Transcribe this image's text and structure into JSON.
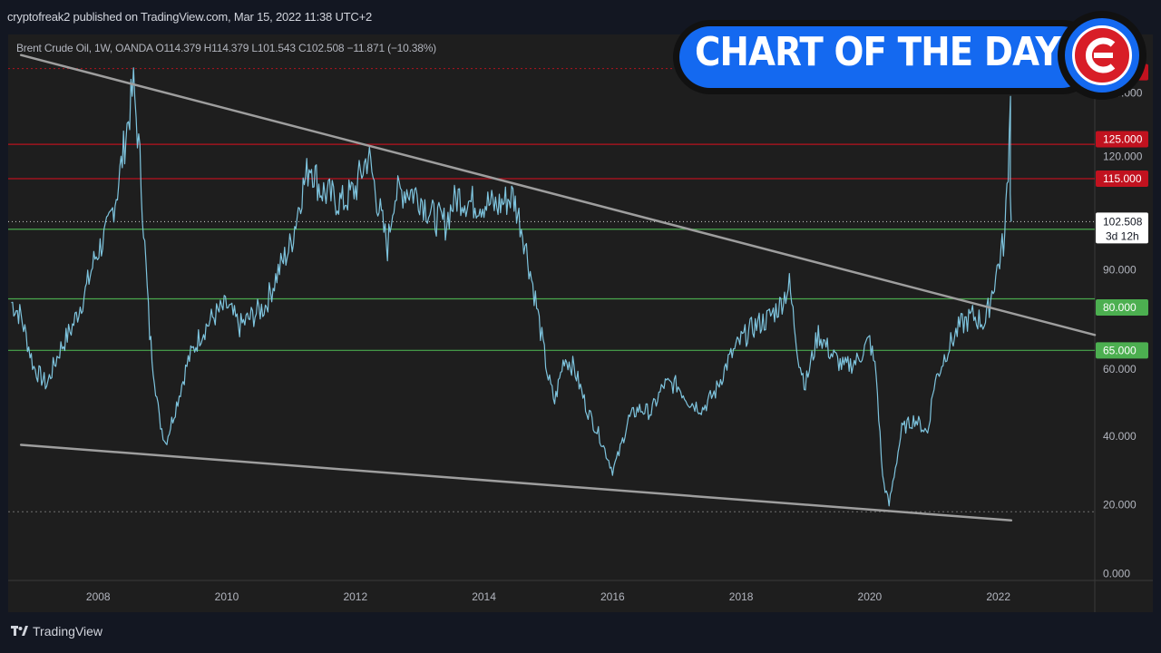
{
  "header": {
    "published_by": "cryptofreak2 published on TradingView.com, Mar 15, 2022 11:38 UTC+2",
    "legend": "Brent Crude Oil, 1W, OANDA  O114.379  H114.379  L101.543  C102.508  −11.871 (−10.38%)"
  },
  "footer": {
    "brand": "TradingView"
  },
  "badge": {
    "text": "CHART OF THE DAY",
    "logo_icon": "c-logo-icon"
  },
  "colors": {
    "background": "#1e1e1e",
    "price_line": "#7ec4de",
    "red_level": "#c1121f",
    "green_level": "#4caf50",
    "trend_line": "#9e9e9e",
    "accent_blue": "#1469f0"
  },
  "chart_data": {
    "type": "line",
    "title": "Brent Crude Oil, 1W, OANDA",
    "xlim": [
      2006.6,
      2023.5
    ],
    "ylim": [
      -2,
      157
    ],
    "x_ticks": [
      2008,
      2010,
      2012,
      2014,
      2016,
      2018,
      2020,
      2022
    ],
    "y_ticks": [
      0,
      20,
      40,
      60,
      80,
      90,
      100,
      102.508,
      115,
      120,
      125,
      140,
      147.065
    ],
    "axis_labels": [
      {
        "value": 0,
        "label": "0.000",
        "style": "plain"
      },
      {
        "value": 20,
        "label": "20.000",
        "style": "plain"
      },
      {
        "value": 40,
        "label": "40.000",
        "style": "plain"
      },
      {
        "value": 60,
        "label": "60.000",
        "style": "plain"
      },
      {
        "value": 65,
        "label": "65.000",
        "style": "green"
      },
      {
        "value": 80,
        "label": "80.000",
        "style": "green"
      },
      {
        "value": 90,
        "label": "90.000",
        "style": "plain"
      },
      {
        "value": 100.284,
        "label": "100.284",
        "style": "green"
      },
      {
        "value": 102.508,
        "label": "102.508",
        "sublabel": "3d 12h",
        "style": "last"
      },
      {
        "value": 115,
        "label": "115.000",
        "style": "red"
      },
      {
        "value": 120,
        "label": "120.000",
        "style": "plain"
      },
      {
        "value": 125,
        "label": "125.000",
        "style": "red"
      },
      {
        "value": 140,
        "label": "140.000",
        "style": "plain"
      },
      {
        "value": 147.065,
        "label": "147.065",
        "style": "red"
      }
    ],
    "horizontal_levels": [
      {
        "value": 147.065,
        "color": "red",
        "dashed": true
      },
      {
        "value": 125,
        "color": "red",
        "dashed": false
      },
      {
        "value": 115,
        "color": "red",
        "dashed": false
      },
      {
        "value": 100.284,
        "color": "green",
        "dashed": false
      },
      {
        "value": 80,
        "color": "green",
        "dashed": false
      },
      {
        "value": 65,
        "color": "green",
        "dashed": false
      },
      {
        "value": 18,
        "color": "gray",
        "dashed": true
      }
    ],
    "last_price": 102.508,
    "trend_lines": [
      {
        "from": [
          2006.8,
          151.0
        ],
        "to": [
          2023.5,
          69.5
        ]
      },
      {
        "from": [
          2006.8,
          37.5
        ],
        "to": [
          2022.2,
          15.5
        ]
      }
    ],
    "series": [
      {
        "x": [
          2006.65,
          2006.8,
          2007.0,
          2007.2,
          2007.4,
          2007.6,
          2007.8,
          2007.95,
          2008.15,
          2008.3,
          2008.45,
          2008.55,
          2008.65,
          2008.8,
          2008.95,
          2009.05,
          2009.2,
          2009.4,
          2009.6,
          2009.8,
          2010.0,
          2010.2,
          2010.4,
          2010.6,
          2010.8,
          2011.0,
          2011.15,
          2011.3,
          2011.45,
          2011.6,
          2011.8,
          2012.0,
          2012.2,
          2012.35,
          2012.5,
          2012.6,
          2012.8,
          2013.0,
          2013.2,
          2013.4,
          2013.5,
          2013.6,
          2013.8,
          2014.0,
          2014.2,
          2014.45,
          2014.6,
          2014.8,
          2015.0,
          2015.1,
          2015.25,
          2015.4,
          2015.6,
          2015.8,
          2016.0,
          2016.1,
          2016.25,
          2016.4,
          2016.6,
          2016.8,
          2017.0,
          2017.2,
          2017.4,
          2017.6,
          2017.8,
          2018.0,
          2018.2,
          2018.4,
          2018.6,
          2018.75,
          2018.9,
          2019.0,
          2019.2,
          2019.4,
          2019.6,
          2019.8,
          2020.0,
          2020.1,
          2020.2,
          2020.3,
          2020.5,
          2020.7,
          2020.9,
          2021.0,
          2021.2,
          2021.4,
          2021.6,
          2021.8,
          2021.9,
          2022.0,
          2022.1,
          2022.17,
          2022.2
        ],
        "values": [
          79,
          75,
          60,
          55,
          65,
          72,
          82,
          92,
          100,
          112,
          130,
          142,
          120,
          70,
          45,
          38,
          48,
          62,
          70,
          75,
          78,
          72,
          75,
          78,
          88,
          96,
          110,
          120,
          112,
          110,
          108,
          112,
          122,
          108,
          95,
          110,
          112,
          110,
          104,
          102,
          107,
          110,
          108,
          108,
          107,
          110,
          100,
          80,
          57,
          50,
          63,
          60,
          48,
          40,
          30,
          35,
          45,
          48,
          47,
          55,
          55,
          50,
          48,
          53,
          62,
          68,
          72,
          74,
          78,
          84,
          62,
          55,
          70,
          64,
          60,
          62,
          68,
          58,
          28,
          20,
          42,
          45,
          41,
          55,
          65,
          72,
          75,
          73,
          82,
          90,
          98,
          127,
          102.508
        ]
      }
    ]
  }
}
